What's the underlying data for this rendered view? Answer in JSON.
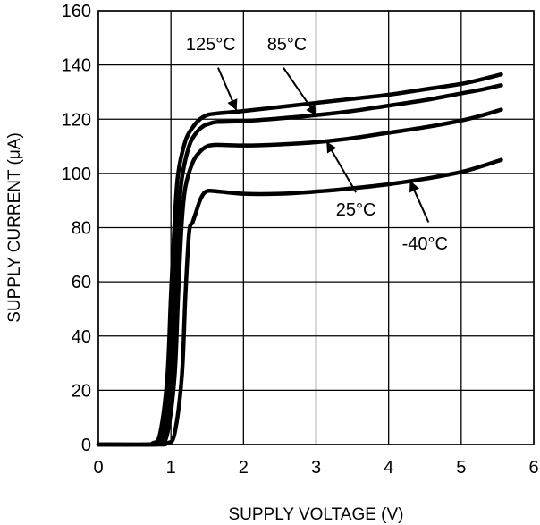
{
  "chart_data": {
    "type": "line",
    "title": "",
    "xlabel": "SUPPLY VOLTAGE (V)",
    "ylabel": "SUPPLY CURRENT (μA)",
    "xlim": [
      0,
      6
    ],
    "ylim": [
      0,
      160
    ],
    "xticks": [
      0,
      1,
      2,
      3,
      4,
      5,
      6
    ],
    "yticks": [
      0,
      20,
      40,
      60,
      80,
      100,
      120,
      140,
      160
    ],
    "grid": true,
    "legend": "none",
    "line_color": "#000000",
    "series": [
      {
        "name": "125°C",
        "x": [
          0,
          0.6,
          0.75,
          0.85,
          0.95,
          1.0,
          1.05,
          1.1,
          1.2,
          1.3,
          1.4,
          1.5,
          1.6,
          2.0,
          2.5,
          3.0,
          3.5,
          4.0,
          4.5,
          5.0,
          5.3,
          5.55
        ],
        "y": [
          0,
          0,
          0.5,
          4,
          25,
          55,
          82,
          100,
          112,
          117,
          120,
          121.5,
          122,
          123,
          124.5,
          126,
          127.5,
          129,
          131,
          133,
          134.8,
          136.5
        ]
      },
      {
        "name": "85°C",
        "x": [
          0,
          0.65,
          0.8,
          0.9,
          1.0,
          1.05,
          1.1,
          1.15,
          1.25,
          1.35,
          1.45,
          1.55,
          1.65,
          2.0,
          2.5,
          3.0,
          3.5,
          4.0,
          4.5,
          5.0,
          5.3,
          5.55
        ],
        "y": [
          0,
          0,
          0.5,
          4,
          25,
          55,
          82,
          98,
          110,
          115,
          117.5,
          118.5,
          119,
          119.3,
          120.3,
          121.5,
          123,
          125,
          127,
          129.5,
          131,
          132.5
        ]
      },
      {
        "name": "25°C",
        "x": [
          0,
          0.7,
          0.85,
          0.95,
          1.05,
          1.1,
          1.15,
          1.2,
          1.3,
          1.4,
          1.5,
          1.6,
          1.7,
          2.0,
          2.5,
          3.0,
          3.5,
          4.0,
          4.5,
          5.0,
          5.3,
          5.55
        ],
        "y": [
          0,
          0,
          0.5,
          4,
          25,
          55,
          82,
          95,
          104,
          108,
          110,
          110.5,
          110.5,
          110.3,
          110.7,
          111.5,
          113,
          115,
          117,
          119.5,
          121.5,
          123.5
        ]
      },
      {
        "name": "-40°C",
        "x": [
          0,
          0.8,
          0.95,
          1.05,
          1.15,
          1.2,
          1.25,
          1.3,
          1.35,
          1.4,
          1.45,
          1.5,
          1.6,
          2.0,
          2.5,
          3.0,
          3.5,
          4.0,
          4.5,
          5.0,
          5.3,
          5.55
        ],
        "y": [
          0,
          0,
          0.5,
          4,
          25,
          55,
          78,
          82,
          86,
          90,
          92.5,
          93.5,
          93.5,
          92.5,
          92.5,
          93.3,
          94.5,
          96,
          98,
          100.5,
          102.8,
          105
        ]
      }
    ],
    "annotations": [
      {
        "text": "125°C",
        "series": "125°C",
        "label_x": 1.55,
        "label_y": 145.5,
        "arrow_from": [
          1.65,
          139
        ],
        "arrow_to": [
          1.9,
          123.5
        ]
      },
      {
        "text": "85°C",
        "series": "85°C",
        "label_x": 2.6,
        "label_y": 145.5,
        "arrow_from": [
          2.55,
          139
        ],
        "arrow_to": [
          3.0,
          121.5
        ]
      },
      {
        "text": "25°C",
        "series": "25°C",
        "label_x": 3.55,
        "label_y": 84.5,
        "arrow_from": [
          3.55,
          93
        ],
        "arrow_to": [
          3.15,
          111.5
        ]
      },
      {
        "text": "-40°C",
        "series": "-40°C",
        "label_x": 4.5,
        "label_y": 72,
        "arrow_from": [
          4.55,
          82
        ],
        "arrow_to": [
          4.3,
          97
        ]
      }
    ]
  }
}
